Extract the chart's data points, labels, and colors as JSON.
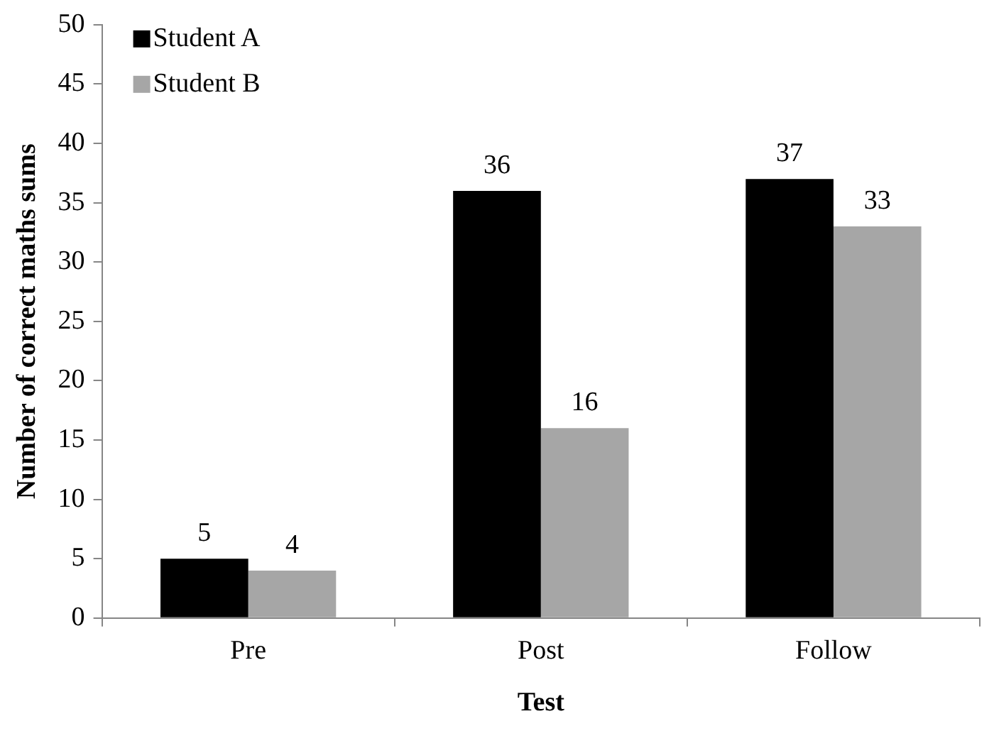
{
  "chart_data": {
    "type": "bar",
    "xlabel": "Test",
    "ylabel": "Number of correct maths sums",
    "categories": [
      "Pre",
      "Post",
      "Follow"
    ],
    "series": [
      {
        "name": "Student A",
        "color": "#000000",
        "values": [
          5,
          36,
          37
        ]
      },
      {
        "name": "Student B",
        "color": "#a6a6a6",
        "values": [
          4,
          16,
          33
        ]
      }
    ],
    "ylim": [
      0,
      50
    ],
    "yticks": [
      0,
      5,
      10,
      15,
      20,
      25,
      30,
      35,
      40,
      45,
      50
    ],
    "grid": false,
    "legend": "top left",
    "data_labels": true
  }
}
